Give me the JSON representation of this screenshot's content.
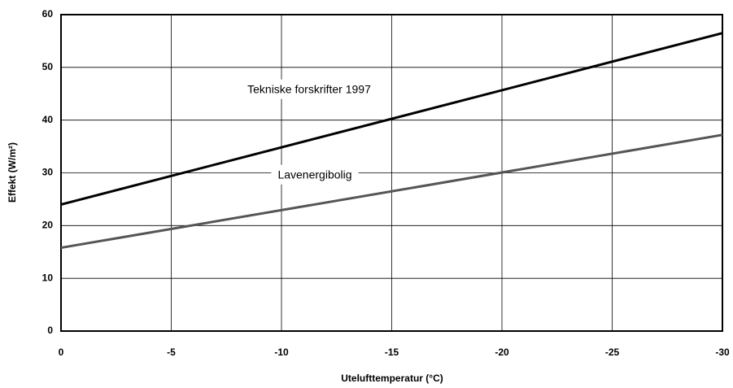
{
  "chart_data": {
    "type": "line",
    "xlabel": "Utelufttemperatur (°C)",
    "ylabel": "Effekt (W/m²)",
    "x": [
      0,
      -30
    ],
    "series": [
      {
        "name": "Tekniske forskrifter 1997",
        "color": "#000000",
        "values": [
          24,
          56.5
        ]
      },
      {
        "name": "Lavenergibolig",
        "color": "#555555",
        "values": [
          15.8,
          37.2
        ]
      }
    ],
    "xlim": [
      0,
      -30
    ],
    "xticks": [
      0,
      -5,
      -10,
      -15,
      -20,
      -25,
      -30
    ],
    "ylim": [
      0,
      60
    ],
    "yticks": [
      0,
      10,
      20,
      30,
      40,
      50,
      60
    ],
    "grid": true
  }
}
